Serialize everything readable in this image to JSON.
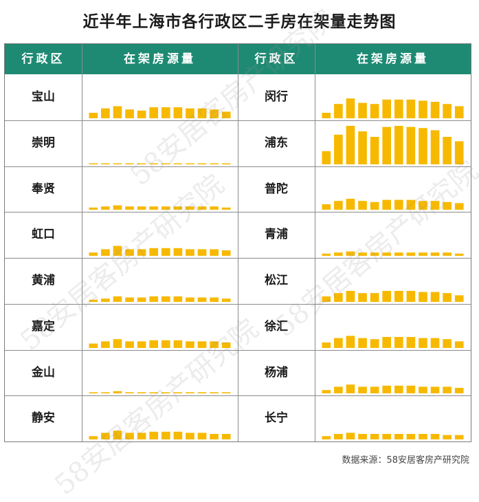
{
  "title": "近半年上海市各行政区二手房在架量走势图",
  "headers": [
    "行政区",
    "在架房源量",
    "行政区",
    "在架房源量"
  ],
  "source": "数据来源：58安居客房产研究院",
  "watermark": "58安居客房产研究院",
  "colors": {
    "header_bg": "#1e8a73",
    "bar": "#f7b900"
  },
  "chart_data": [
    {
      "type": "bar",
      "name": "宝山",
      "values": [
        5,
        9,
        11,
        8,
        7,
        10,
        10,
        10,
        9,
        9,
        8,
        6
      ]
    },
    {
      "type": "bar",
      "name": "崇明",
      "values": [
        0.4,
        0.4,
        0.4,
        0.4,
        0.4,
        0.4,
        0.4,
        0.4,
        0.4,
        0.4,
        0.4,
        0.4
      ]
    },
    {
      "type": "bar",
      "name": "奉贤",
      "values": [
        2,
        3,
        4,
        3,
        3,
        3,
        3,
        3,
        3,
        3,
        3,
        2
      ]
    },
    {
      "type": "bar",
      "name": "虹口",
      "values": [
        3,
        6,
        9,
        6,
        6,
        7,
        7,
        7,
        6,
        6,
        6,
        5
      ]
    },
    {
      "type": "bar",
      "name": "黄浦",
      "values": [
        2,
        3,
        5,
        4,
        4,
        5,
        5,
        5,
        4,
        4,
        4,
        3
      ]
    },
    {
      "type": "bar",
      "name": "嘉定",
      "values": [
        4,
        6,
        8,
        6,
        6,
        7,
        7,
        7,
        6,
        6,
        6,
        5
      ]
    },
    {
      "type": "bar",
      "name": "金山",
      "values": [
        1,
        1,
        2,
        1,
        1,
        1,
        1,
        1,
        1,
        1,
        1,
        1
      ]
    },
    {
      "type": "bar",
      "name": "静安",
      "values": [
        3,
        6,
        8,
        6,
        6,
        7,
        7,
        7,
        6,
        6,
        5,
        5
      ]
    },
    {
      "type": "bar",
      "name": "闵行",
      "values": [
        5,
        13,
        18,
        14,
        13,
        17,
        17,
        17,
        16,
        15,
        13,
        11
      ]
    },
    {
      "type": "bar",
      "name": "浦东",
      "values": [
        12,
        27,
        35,
        30,
        25,
        34,
        35,
        34,
        33,
        31,
        25,
        21
      ]
    },
    {
      "type": "bar",
      "name": "普陀",
      "values": [
        5,
        8,
        10,
        8,
        7,
        9,
        9,
        9,
        8,
        8,
        7,
        6
      ]
    },
    {
      "type": "bar",
      "name": "青浦",
      "values": [
        2,
        3,
        4,
        3,
        3,
        3,
        3,
        3,
        3,
        3,
        3,
        2
      ]
    },
    {
      "type": "bar",
      "name": "松江",
      "values": [
        5,
        8,
        10,
        8,
        8,
        10,
        10,
        10,
        9,
        9,
        8,
        6
      ]
    },
    {
      "type": "bar",
      "name": "徐汇",
      "values": [
        5,
        9,
        11,
        9,
        8,
        10,
        10,
        10,
        9,
        9,
        8,
        6
      ]
    },
    {
      "type": "bar",
      "name": "杨浦",
      "values": [
        3,
        6,
        8,
        6,
        6,
        7,
        7,
        7,
        6,
        6,
        6,
        5
      ]
    },
    {
      "type": "bar",
      "name": "长宁",
      "values": [
        3,
        5,
        6,
        5,
        5,
        5,
        5,
        5,
        5,
        5,
        4,
        4
      ]
    }
  ]
}
